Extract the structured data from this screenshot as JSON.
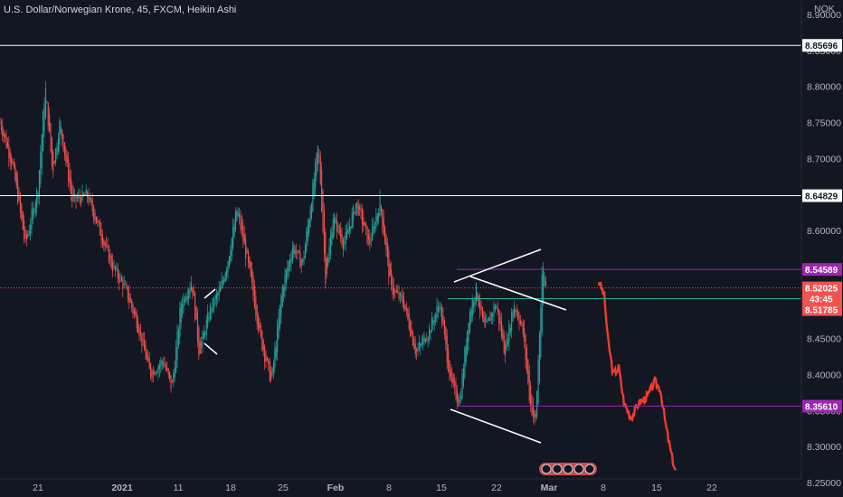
{
  "header": {
    "title": "U.S. Dollar/Norwegian Krone, 45, FXCM, Heikin Ashi",
    "currency": "NOK"
  },
  "colors": {
    "background": "#131722",
    "bull": "#26a69a",
    "bear": "#ef5350",
    "forecast": "#f23b2f",
    "horizontal_line": "#ffffff",
    "purple_line": "#9c27b0",
    "teal_line": "#22ab94",
    "current_price": "#ef5350",
    "axis_text": "#b2b5be"
  },
  "chart_data": {
    "type": "candlestick",
    "chart_style": "heikin-ashi",
    "y_axis": {
      "min": 8.255,
      "max": 8.92,
      "ticks": [
        "8.90000",
        "8.85000",
        "8.80000",
        "8.75000",
        "8.70000",
        "8.65000",
        "8.60000",
        "8.55000",
        "8.50000",
        "8.45000",
        "8.40000",
        "8.35000",
        "8.30000",
        "8.25000"
      ]
    },
    "x_axis": {
      "ticks": [
        "21",
        "2021",
        "11",
        "18",
        "25",
        "Feb",
        "8",
        "15",
        "22",
        "Mar",
        "8",
        "15",
        "22"
      ]
    },
    "levels": [
      {
        "value": 8.85696,
        "label": "8.85696",
        "style": "white"
      },
      {
        "value": 8.64829,
        "label": "8.64829",
        "style": "white"
      },
      {
        "value": 8.54589,
        "label": "8.54589",
        "style": "purple"
      },
      {
        "value": 8.3561,
        "label": "8.35610",
        "style": "purple"
      },
      {
        "value": 8.50528,
        "label": "8.50528",
        "style": "teal"
      }
    ],
    "current_price": {
      "value": 8.52025,
      "label": "8.52025",
      "countdown": "43:45",
      "bid": "8.51785"
    },
    "price_anchors": [
      [
        0,
        8.75
      ],
      [
        14,
        8.69
      ],
      [
        28,
        8.58
      ],
      [
        42,
        8.66
      ],
      [
        50,
        8.8
      ],
      [
        58,
        8.68
      ],
      [
        66,
        8.75
      ],
      [
        80,
        8.64
      ],
      [
        96,
        8.65
      ],
      [
        110,
        8.6
      ],
      [
        124,
        8.55
      ],
      [
        138,
        8.52
      ],
      [
        152,
        8.47
      ],
      [
        166,
        8.4
      ],
      [
        180,
        8.42
      ],
      [
        190,
        8.38
      ],
      [
        200,
        8.5
      ],
      [
        212,
        8.53
      ],
      [
        220,
        8.43
      ],
      [
        232,
        8.49
      ],
      [
        244,
        8.52
      ],
      [
        252,
        8.56
      ],
      [
        262,
        8.63
      ],
      [
        276,
        8.54
      ],
      [
        288,
        8.45
      ],
      [
        300,
        8.39
      ],
      [
        312,
        8.52
      ],
      [
        324,
        8.58
      ],
      [
        334,
        8.55
      ],
      [
        346,
        8.66
      ],
      [
        352,
        8.72
      ],
      [
        360,
        8.53
      ],
      [
        368,
        8.62
      ],
      [
        380,
        8.58
      ],
      [
        394,
        8.64
      ],
      [
        408,
        8.58
      ],
      [
        420,
        8.64
      ],
      [
        432,
        8.52
      ],
      [
        446,
        8.5
      ],
      [
        460,
        8.43
      ],
      [
        474,
        8.46
      ],
      [
        486,
        8.5
      ],
      [
        498,
        8.39
      ],
      [
        508,
        8.36
      ],
      [
        518,
        8.48
      ],
      [
        526,
        8.52
      ],
      [
        536,
        8.46
      ],
      [
        548,
        8.5
      ],
      [
        558,
        8.43
      ],
      [
        568,
        8.5
      ],
      [
        578,
        8.46
      ],
      [
        586,
        8.36
      ],
      [
        592,
        8.33
      ],
      [
        596,
        8.45
      ],
      [
        600,
        8.55
      ],
      [
        604,
        8.52
      ]
    ],
    "forecast_anchors": [
      [
        662,
        8.53
      ],
      [
        668,
        8.51
      ],
      [
        672,
        8.45
      ],
      [
        678,
        8.4
      ],
      [
        684,
        8.41
      ],
      [
        690,
        8.36
      ],
      [
        698,
        8.34
      ],
      [
        706,
        8.36
      ],
      [
        716,
        8.37
      ],
      [
        724,
        8.39
      ],
      [
        730,
        8.38
      ],
      [
        736,
        8.33
      ],
      [
        742,
        8.29
      ],
      [
        748,
        8.26
      ]
    ]
  }
}
